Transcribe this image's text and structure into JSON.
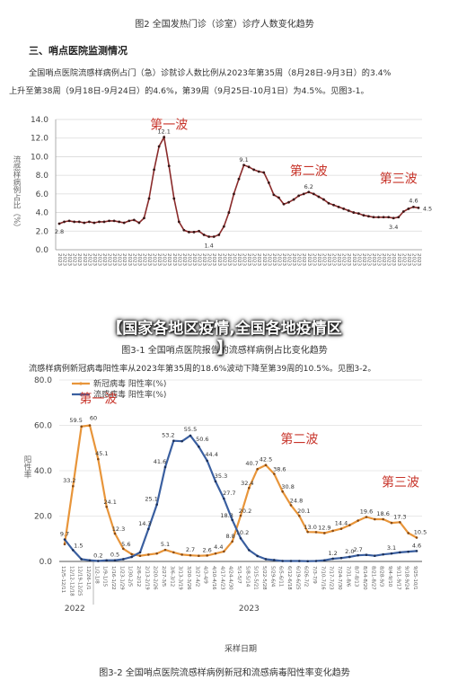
{
  "page": {
    "fig2_caption": "图2 全国发热门诊（诊室）诊疗人数变化趋势",
    "section_title": "三、哨点医院监测情况",
    "para1_line1": "全国哨点医院流感样病例占门（急）诊就诊人数比例从2023年第35周（8月28日-9月3日）的3.4%",
    "para1_line2": "上升至第38周（9月18日-9月24日）的4.6%，第39周（9月25日-10月1日）为4.5%。见图3-1。",
    "overlay_title_line1": "【国家各地区疫情,全国各地疫情区",
    "overlay_title_line2": "】",
    "fig31_caption": "图3-1 全国哨点医院报告的流感样病例占比变化趋势",
    "para2": "流感样病例新冠病毒阳性率从2023年第35周的18.6%波动下降至第39周的10.5%。见图3-2。",
    "fig32_caption": "图3-2 全国哨点医院流感样病例新冠和流感病毒阳性率变化趋势"
  },
  "chart_data": [
    {
      "type": "line",
      "ylabel": "流感样病例占比（%）",
      "ylim": [
        0,
        14
      ],
      "yticks": [
        "0.0",
        "2.0",
        "4.0",
        "6.0",
        "8.0",
        "10.0",
        "12.0",
        "14.0"
      ],
      "grid": true,
      "color": "#8a2a2a",
      "series": [
        {
          "values": [
            2.8,
            3.0,
            3.1,
            3.0,
            3.0,
            2.9,
            3.0,
            2.9,
            3.0,
            3.0,
            3.1,
            3.1,
            3.0,
            2.9,
            3.1,
            3.2,
            2.9,
            3.4,
            5.5,
            8.6,
            11.1,
            12.1,
            9.0,
            5.5,
            3.0,
            2.1,
            1.9,
            1.9,
            2.0,
            1.6,
            1.4,
            1.4,
            1.6,
            2.5,
            4.0,
            6.0,
            7.6,
            9.1,
            8.9,
            8.6,
            8.4,
            8.3,
            7.2,
            5.9,
            5.6,
            4.9,
            5.1,
            5.4,
            5.8,
            6.0,
            6.2,
            6.0,
            5.7,
            5.4,
            5.0,
            4.8,
            4.6,
            4.4,
            4.2,
            4.0,
            3.9,
            3.7,
            3.6,
            3.5,
            3.5,
            3.5,
            3.5,
            3.4,
            3.5,
            4.1,
            4.4,
            4.6,
            4.5
          ]
        }
      ],
      "annotations": [
        "2.8",
        "12.1",
        "1.4",
        "9.1",
        "6.2",
        "3.4",
        "4.6",
        "4.5"
      ],
      "wave_labels": [
        "第一波",
        "第二波",
        "第三波"
      ]
    },
    {
      "type": "line",
      "xlabel": "采样日期",
      "ylabel": "阳性率",
      "ylim": [
        0,
        80
      ],
      "yticks": [
        "0.0",
        "20.0",
        "40.0",
        "60.0",
        "80.0"
      ],
      "years": [
        "2022",
        "2023"
      ],
      "categories": [
        "12/5-12/11",
        "12/12-12/18",
        "12/19-12/25",
        "12/26-1/1",
        "1/2-1/8",
        "1/9-1/15",
        "1/16-1/22",
        "1/23-1/29",
        "1/30-2/5",
        "2/6-2/12",
        "2/13-2/19",
        "2/20-2/26",
        "2/27-3/5",
        "3/6-3/12",
        "3/13-3/19",
        "3/20-3/26",
        "3/27-4/2",
        "4/3-4/9",
        "4/10-4/16",
        "4/17-4/23",
        "4/24-4/30",
        "5/1-5/7",
        "5/8-5/14",
        "5/15-5/21",
        "5/22-5/28",
        "5/29-6/4",
        "6/5-6/11",
        "6/12-6/18",
        "6/19-6/25",
        "6/26-7/2",
        "7/3-7/9",
        "7/10-7/16",
        "7/17-7/23",
        "7/24-7/30",
        "7/31-8/6",
        "8/7-8/13",
        "8/14-8/20",
        "8/21-8/27",
        "8/28-9/3",
        "9/4-9/10",
        "9/11-9/17",
        "9/18-9/24",
        "9/25-10/1"
      ],
      "series": [
        {
          "name": "新冠病毒 阳性率(%)",
          "color": "#e8953a",
          "values": [
            7.6,
            33.2,
            59.5,
            60.0,
            45.1,
            24.1,
            12.3,
            5.6,
            3.2,
            2.5,
            3.0,
            3.5,
            5.1,
            4.0,
            3.0,
            2.7,
            2.5,
            2.6,
            3.5,
            4.4,
            8.8,
            20.2,
            32.4,
            40.7,
            42.5,
            38.6,
            30.8,
            24.8,
            20.1,
            13.0,
            12.9,
            12.5,
            13.5,
            14.4,
            16.0,
            18.0,
            19.6,
            18.6,
            18.6,
            17.0,
            17.3,
            12.5,
            10.5
          ]
        },
        {
          "name": "流感病毒 阳性率(%)",
          "color": "#3a5fa0",
          "values": [
            9.7,
            5.0,
            1.0,
            0.5,
            0.2,
            0.5,
            0.5,
            1.0,
            2.0,
            4.0,
            14.3,
            25.1,
            41.6,
            53.2,
            53.0,
            55.5,
            50.6,
            44.4,
            35.3,
            27.7,
            18.3,
            10.2,
            5.0,
            2.4,
            1.0,
            0.6,
            0.2,
            0.2,
            0.2,
            0.1,
            0.2,
            0.5,
            1.2,
            1.5,
            2.0,
            2.7,
            2.9,
            2.5,
            3.1,
            3.5,
            4.0,
            4.3,
            4.6
          ]
        }
      ],
      "annotations": [
        "9.7",
        "1.5",
        "0.2",
        "0.5",
        "33.2",
        "59.5",
        "60",
        "45.1",
        "24.1",
        "12.3",
        "5.6",
        "14.3",
        "25.1",
        "41.6",
        "53.2",
        "55.5",
        "50.6",
        "44.4",
        "35.3",
        "27.7",
        "18.3",
        "8.8",
        "10.2",
        "4.4",
        "2.6",
        "2.7",
        "5.1",
        "40.7",
        "42.5",
        "38.6",
        "32.4",
        "30.8",
        "24.8",
        "20.2",
        "20.1",
        "13.0",
        "12.9",
        "14.4",
        "19.6",
        "18.6",
        "17.3",
        "10.5",
        "2.0",
        "2.7",
        "3.1",
        "4.6",
        "1.2"
      ],
      "wave_labels": [
        "第一波",
        "第二波",
        "第三波"
      ]
    }
  ]
}
